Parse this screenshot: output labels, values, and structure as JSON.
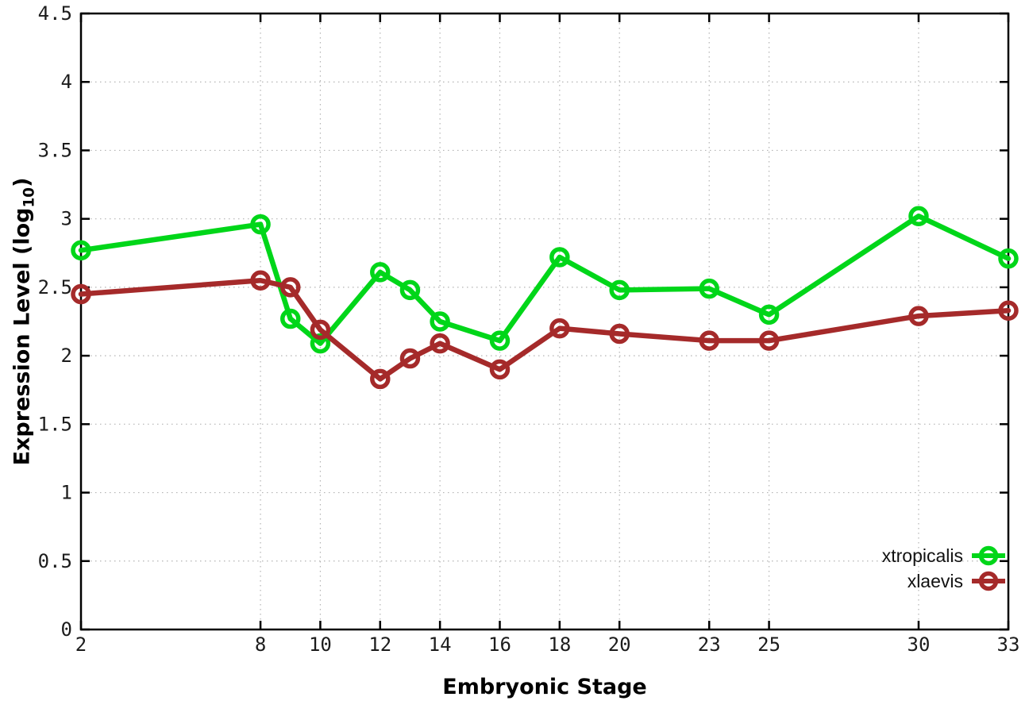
{
  "labels": {
    "xlabel": "Embryonic Stage",
    "ylabel_main": "Expression Level (log",
    "ylabel_sub": "10",
    "ylabel_end": ")"
  },
  "chart_data": {
    "type": "line",
    "title": "",
    "xlabel": "Embryonic Stage",
    "ylabel": "Expression Level (log10)",
    "x": [
      2,
      8,
      9,
      10,
      12,
      13,
      14,
      16,
      18,
      20,
      23,
      25,
      30,
      33
    ],
    "series": [
      {
        "name": "xtropicalis",
        "color": "#00d619",
        "marker": "open-circle",
        "values": [
          2.77,
          2.96,
          2.27,
          2.09,
          2.61,
          2.48,
          2.25,
          2.11,
          2.72,
          2.48,
          2.49,
          2.3,
          3.02,
          2.71
        ]
      },
      {
        "name": "xlaevis",
        "color": "#a52a2a",
        "marker": "open-circle",
        "values": [
          2.45,
          2.55,
          2.5,
          2.19,
          1.83,
          1.98,
          2.09,
          1.9,
          2.2,
          2.16,
          2.11,
          2.11,
          2.29,
          2.33
        ]
      }
    ],
    "xticks": [
      2,
      8,
      10,
      12,
      14,
      16,
      18,
      20,
      23,
      25,
      30,
      33
    ],
    "yticks": [
      0,
      0.5,
      1,
      1.5,
      2,
      2.5,
      3,
      3.5,
      4,
      4.5
    ],
    "xlim": [
      2,
      33
    ],
    "ylim": [
      0,
      4.5
    ],
    "grid": true,
    "legend_position": "inside-bottom-right",
    "colors": {
      "grid": "#b3b3b3",
      "axis": "#000000",
      "background": "#ffffff",
      "tick_text": "#1c1c1c"
    }
  }
}
